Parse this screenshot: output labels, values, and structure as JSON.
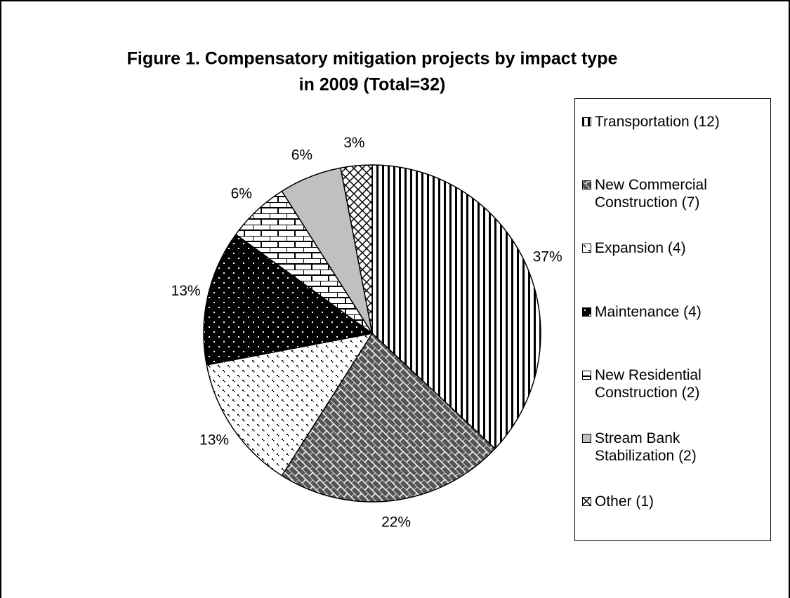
{
  "chart_data": {
    "type": "pie",
    "title": [
      "Figure 1. Compensatory mitigation projects by impact type",
      "in 2009 (Total=32)"
    ],
    "categories": [
      "Transportation (12)",
      "New Commercial Construction (7)",
      "Expansion (4)",
      "Maintenance (4)",
      "New Residential Construction (2)",
      "Stream Bank Stabilization (2)",
      "Other (1)"
    ],
    "values": [
      37,
      22,
      13,
      13,
      6,
      6,
      3
    ],
    "value_labels": [
      "37%",
      "22%",
      "13%",
      "13%",
      "6%",
      "6%",
      "3%"
    ],
    "legend": "right"
  }
}
